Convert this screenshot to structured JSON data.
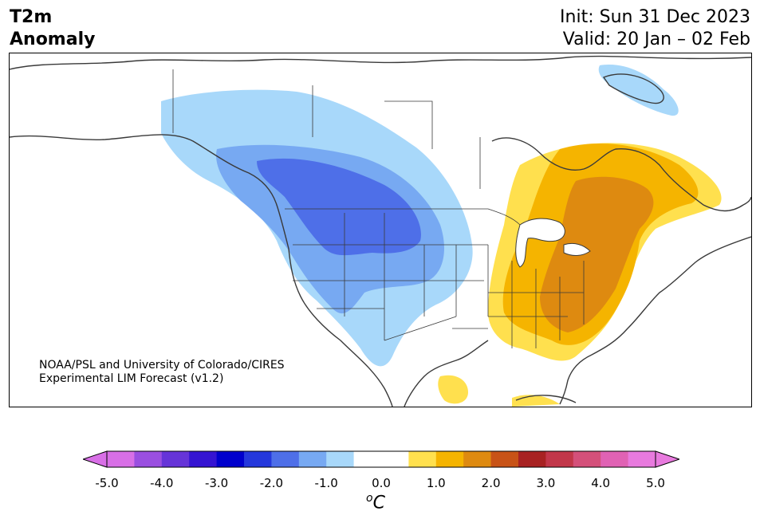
{
  "title": {
    "line1": "T2m",
    "line2": "Anomaly"
  },
  "init": {
    "line1": "Init: Sun 31 Dec 2023",
    "line2": "Valid: 20 Jan – 02 Feb"
  },
  "credit": {
    "line1": "NOAA/PSL and University of Colorado/CIRES",
    "line2": "Experimental LIM Forecast (v1.2)"
  },
  "colorbar": {
    "unit_base": "C",
    "unit_sup": "o",
    "ticks": [
      "-5.0",
      "-4.0",
      "-3.0",
      "-2.0",
      "-1.0",
      "0.0",
      "1.0",
      "2.0",
      "3.0",
      "4.0",
      "5.0"
    ],
    "colors": [
      "#d86fe6",
      "#9a4fe0",
      "#6634d8",
      "#3514d2",
      "#0000cd",
      "#2538dc",
      "#4e6fe8",
      "#77a9f2",
      "#a8d8fa",
      "#ffffff",
      "#ffffff",
      "#ffe04e",
      "#f5b400",
      "#de8a10",
      "#c85317",
      "#a82222",
      "#c2374a",
      "#d4507a",
      "#e062b4",
      "#e87ade"
    ],
    "extend_low": "#d86fe6",
    "extend_high": "#e87ade"
  },
  "map_colors": {
    "land_line": "#3a3a3a",
    "light_blue": "#a8d8fa",
    "mid_blue": "#77a9f2",
    "dark_blue": "#4e6fe8",
    "yellow": "#ffe04e",
    "gold": "#f5b400",
    "orange": "#de8a10"
  }
}
